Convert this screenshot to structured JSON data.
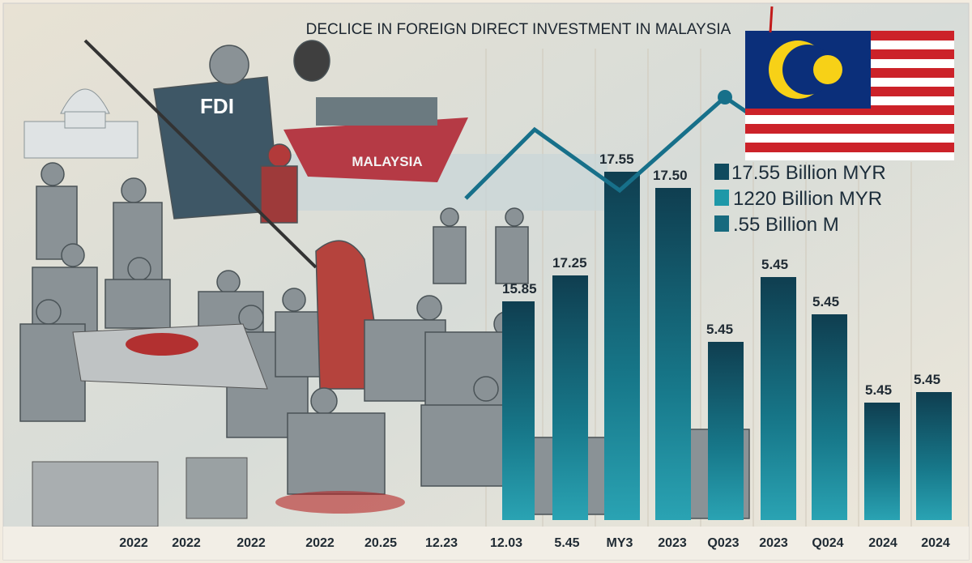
{
  "title": "DECLICE IN FOREIGN DIRECT INVESTMENT IN MALAYSIA",
  "illustration": {
    "officer_label": "FDI",
    "ship_label": "MALAYSIA"
  },
  "bar_labels": [
    "15.85",
    "17.25",
    "17.55",
    "17.50",
    "5.45",
    "5.45",
    "5.45",
    "5.45",
    "5.45"
  ],
  "legend": [
    "17.55 Billion MYR",
    "1220 Billion MYR",
    ".55 Billion M"
  ],
  "x_labels": [
    "2022",
    "2022",
    "2022",
    "2022",
    "20.25",
    "12.23",
    "12.03",
    "5.45",
    "MY3",
    "2023",
    "Q023",
    "2023",
    "Q024",
    "2024",
    "2024"
  ]
}
